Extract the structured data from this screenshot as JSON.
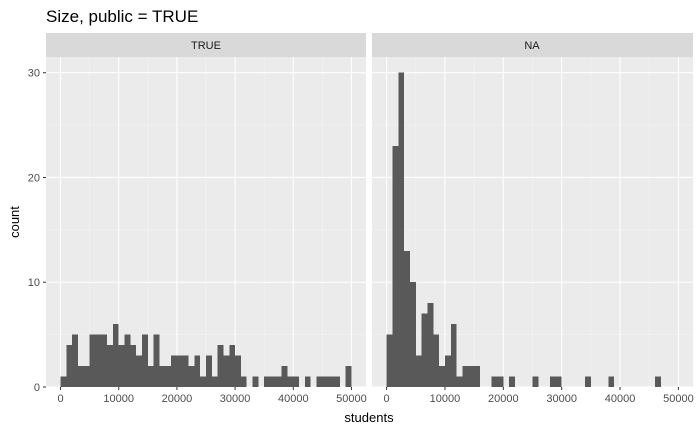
{
  "chart_data": {
    "type": "bar",
    "title": "Size, public = TRUE",
    "xlabel": "students",
    "ylabel": "count",
    "xlim": [
      -2500,
      52500
    ],
    "ylim": [
      0,
      30
    ],
    "x_ticks": [
      0,
      10000,
      20000,
      30000,
      40000,
      50000
    ],
    "y_ticks": [
      0,
      10,
      20,
      30
    ],
    "bin_width": 1000,
    "grid": true,
    "facets": [
      {
        "label": "TRUE",
        "bin_starts": [
          0,
          1000,
          2000,
          3000,
          4000,
          5000,
          6000,
          7000,
          8000,
          9000,
          10000,
          11000,
          12000,
          13000,
          14000,
          15000,
          16000,
          17000,
          18000,
          19000,
          20000,
          21000,
          22000,
          23000,
          24000,
          25000,
          26000,
          27000,
          28000,
          29000,
          30000,
          31000,
          33000,
          35000,
          36000,
          37000,
          38000,
          39000,
          40000,
          42000,
          44000,
          45000,
          46000,
          47000,
          49000
        ],
        "counts": [
          1,
          4,
          5,
          2,
          2,
          5,
          5,
          5,
          4,
          6,
          4,
          5,
          4,
          3,
          5,
          2,
          5,
          2,
          2,
          3,
          3,
          3,
          2,
          3,
          1,
          3,
          1,
          4,
          3,
          4,
          3,
          1,
          1,
          1,
          1,
          1,
          2,
          1,
          1,
          1,
          1,
          1,
          1,
          1,
          2
        ]
      },
      {
        "label": "NA",
        "bin_starts": [
          0,
          1000,
          2000,
          3000,
          4000,
          5000,
          6000,
          7000,
          8000,
          9000,
          10000,
          11000,
          12000,
          13000,
          14000,
          15000,
          18000,
          19000,
          21000,
          25000,
          28000,
          29000,
          34000,
          38000,
          46000
        ],
        "counts": [
          5,
          23,
          30,
          13,
          10,
          3,
          7,
          8,
          5,
          2,
          3,
          6,
          1,
          2,
          2,
          2,
          1,
          1,
          1,
          1,
          1,
          1,
          1,
          1,
          1
        ]
      }
    ]
  }
}
